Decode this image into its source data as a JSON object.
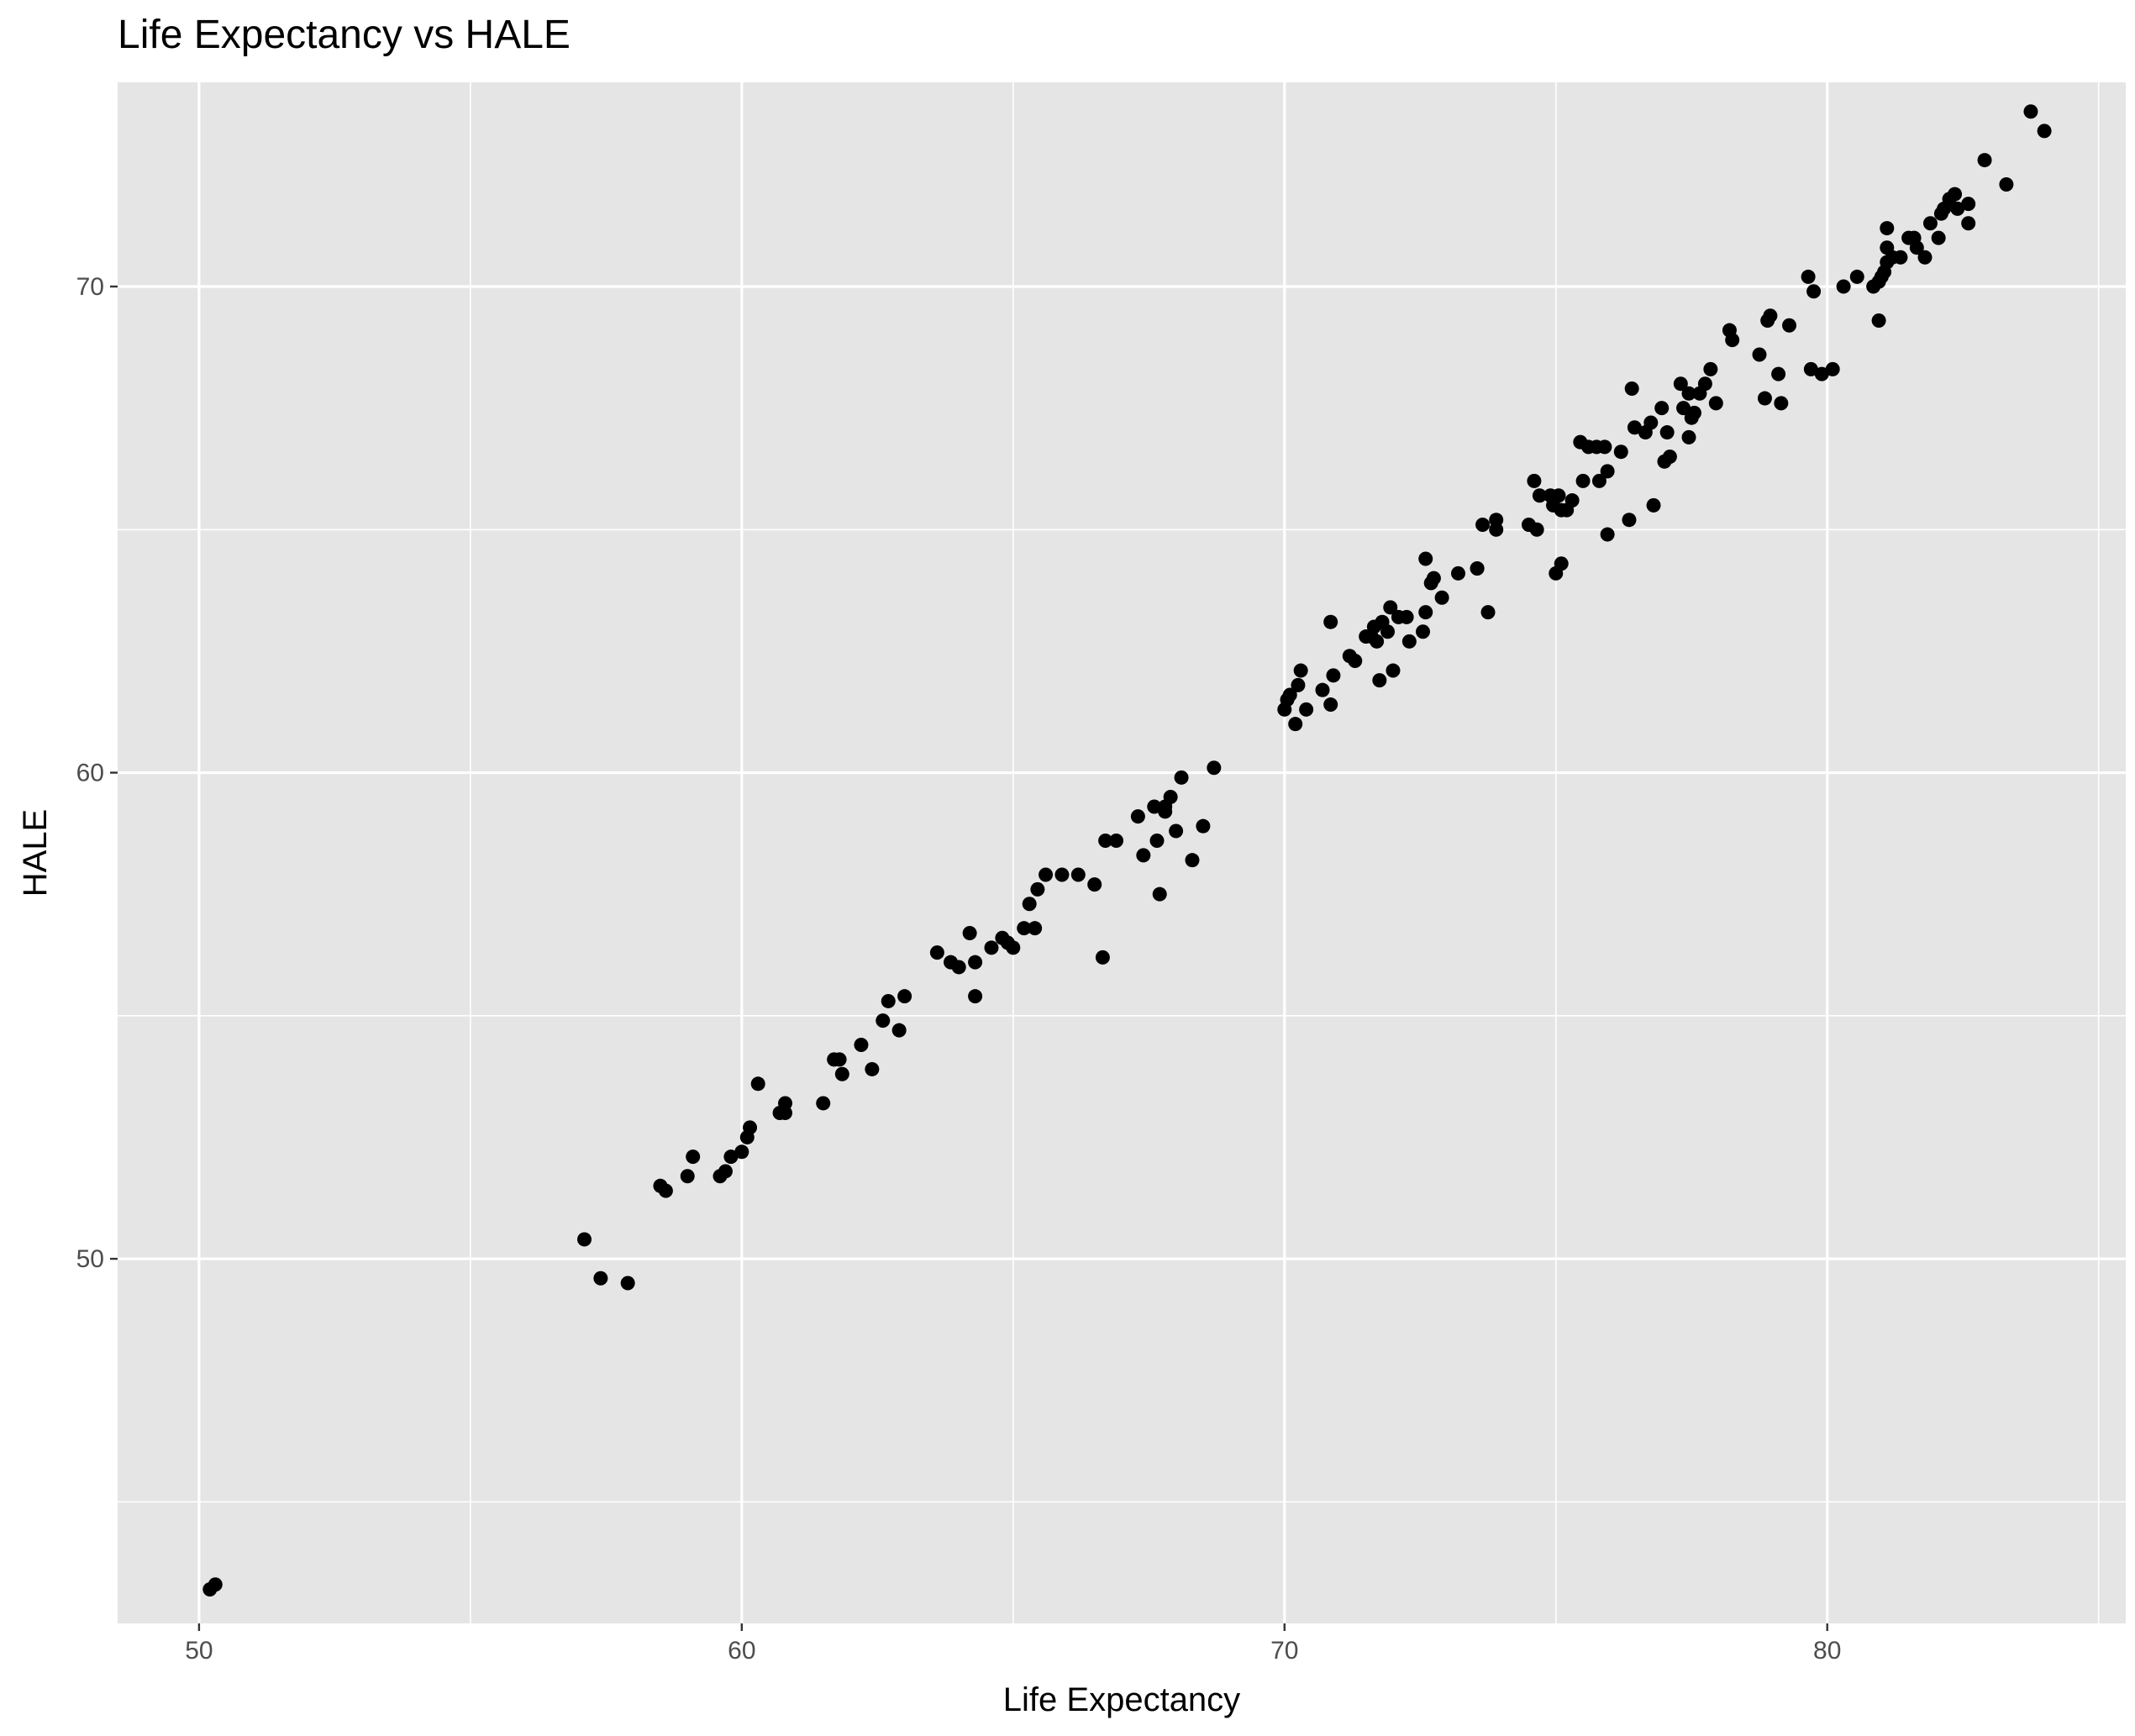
{
  "chart_data": {
    "type": "scatter",
    "title": "Life Expectancy vs HALE",
    "xlabel": "Life Expectancy",
    "ylabel": "HALE",
    "xlim": [
      48.5,
      85.5
    ],
    "ylim": [
      42.5,
      74.2
    ],
    "x_ticks": [
      50,
      60,
      70,
      80
    ],
    "x_tick_labels": [
      "50",
      "60",
      "70",
      "80"
    ],
    "y_ticks": [
      50,
      60,
      70
    ],
    "y_tick_labels": [
      "50",
      "60",
      "70"
    ],
    "x_minor_ticks": [
      55,
      65,
      75,
      85
    ],
    "y_minor_ticks": [
      45,
      55,
      65
    ],
    "grid": true,
    "colors": {
      "panel": "#e5e5e5",
      "grid": "#ffffff",
      "point": "#000000",
      "tick": "#333333"
    },
    "points": [
      [
        50.2,
        43.2
      ],
      [
        50.3,
        43.3
      ],
      [
        57.1,
        50.4
      ],
      [
        57.4,
        49.6
      ],
      [
        57.9,
        49.5
      ],
      [
        58.5,
        51.5
      ],
      [
        58.6,
        51.4
      ],
      [
        59.0,
        51.7
      ],
      [
        59.1,
        52.1
      ],
      [
        59.6,
        51.7
      ],
      [
        59.7,
        51.8
      ],
      [
        59.8,
        52.1
      ],
      [
        60.0,
        52.2
      ],
      [
        60.1,
        52.5
      ],
      [
        60.15,
        52.7
      ],
      [
        60.3,
        53.6
      ],
      [
        60.7,
        53.0
      ],
      [
        60.8,
        53.2
      ],
      [
        60.8,
        53.0
      ],
      [
        61.5,
        53.2
      ],
      [
        61.7,
        54.1
      ],
      [
        61.8,
        54.1
      ],
      [
        61.85,
        53.8
      ],
      [
        62.2,
        54.4
      ],
      [
        62.4,
        53.9
      ],
      [
        62.6,
        54.9
      ],
      [
        62.7,
        55.3
      ],
      [
        62.9,
        54.7
      ],
      [
        63.0,
        55.4
      ],
      [
        63.6,
        56.3
      ],
      [
        63.85,
        56.1
      ],
      [
        64.0,
        56.0
      ],
      [
        64.2,
        56.7
      ],
      [
        64.3,
        55.4
      ],
      [
        64.3,
        56.1
      ],
      [
        64.6,
        56.4
      ],
      [
        64.8,
        56.6
      ],
      [
        64.9,
        56.5
      ],
      [
        65.0,
        56.4
      ],
      [
        65.2,
        56.8
      ],
      [
        65.3,
        57.3
      ],
      [
        65.4,
        56.8
      ],
      [
        65.45,
        57.6
      ],
      [
        65.6,
        57.9
      ],
      [
        65.9,
        57.9
      ],
      [
        66.2,
        57.9
      ],
      [
        66.5,
        57.7
      ],
      [
        66.65,
        56.2
      ],
      [
        66.7,
        58.6
      ],
      [
        66.9,
        58.6
      ],
      [
        67.3,
        59.1
      ],
      [
        67.4,
        58.3
      ],
      [
        67.6,
        59.3
      ],
      [
        67.65,
        58.6
      ],
      [
        67.7,
        57.5
      ],
      [
        67.8,
        59.3
      ],
      [
        67.8,
        59.2
      ],
      [
        67.9,
        59.5
      ],
      [
        68.0,
        58.8
      ],
      [
        68.1,
        59.9
      ],
      [
        68.3,
        58.2
      ],
      [
        68.5,
        58.9
      ],
      [
        68.7,
        60.1
      ],
      [
        70.0,
        61.3
      ],
      [
        70.1,
        61.6
      ],
      [
        70.05,
        61.5
      ],
      [
        70.2,
        61.0
      ],
      [
        70.25,
        61.8
      ],
      [
        70.3,
        62.1
      ],
      [
        70.4,
        61.3
      ],
      [
        70.7,
        61.7
      ],
      [
        70.85,
        61.4
      ],
      [
        70.9,
        62.0
      ],
      [
        70.85,
        63.1
      ],
      [
        71.2,
        62.4
      ],
      [
        71.3,
        62.3
      ],
      [
        71.5,
        62.8
      ],
      [
        71.6,
        62.8
      ],
      [
        71.65,
        63.0
      ],
      [
        71.7,
        62.7
      ],
      [
        71.75,
        61.9
      ],
      [
        71.8,
        63.1
      ],
      [
        71.9,
        62.9
      ],
      [
        71.95,
        63.4
      ],
      [
        72.0,
        62.1
      ],
      [
        72.1,
        63.2
      ],
      [
        72.25,
        63.2
      ],
      [
        72.3,
        62.7
      ],
      [
        72.55,
        62.9
      ],
      [
        72.6,
        63.3
      ],
      [
        72.6,
        64.4
      ],
      [
        72.7,
        63.9
      ],
      [
        72.75,
        64.0
      ],
      [
        72.9,
        63.6
      ],
      [
        73.2,
        64.1
      ],
      [
        73.55,
        64.2
      ],
      [
        73.55,
        64.2
      ],
      [
        73.65,
        65.1
      ],
      [
        73.75,
        63.3
      ],
      [
        73.9,
        65.2
      ],
      [
        73.9,
        65.0
      ],
      [
        74.5,
        65.1
      ],
      [
        74.6,
        66.0
      ],
      [
        74.65,
        65.0
      ],
      [
        74.7,
        65.7
      ],
      [
        74.9,
        65.7
      ],
      [
        74.95,
        65.5
      ],
      [
        75.0,
        64.1
      ],
      [
        75.05,
        65.7
      ],
      [
        75.1,
        64.3
      ],
      [
        75.1,
        65.4
      ],
      [
        75.2,
        65.4
      ],
      [
        75.3,
        65.6
      ],
      [
        75.45,
        66.8
      ],
      [
        75.5,
        66.0
      ],
      [
        75.6,
        66.7
      ],
      [
        75.75,
        66.7
      ],
      [
        75.8,
        66.0
      ],
      [
        75.9,
        66.7
      ],
      [
        75.95,
        66.2
      ],
      [
        75.95,
        64.9
      ],
      [
        76.2,
        66.6
      ],
      [
        76.35,
        65.2
      ],
      [
        76.4,
        67.9
      ],
      [
        76.45,
        67.1
      ],
      [
        76.65,
        67.0
      ],
      [
        76.75,
        67.2
      ],
      [
        76.8,
        65.5
      ],
      [
        76.95,
        67.5
      ],
      [
        77.0,
        66.4
      ],
      [
        77.05,
        67.0
      ],
      [
        77.1,
        66.5
      ],
      [
        77.3,
        68.0
      ],
      [
        77.35,
        67.5
      ],
      [
        77.45,
        67.8
      ],
      [
        77.45,
        66.9
      ],
      [
        77.5,
        67.3
      ],
      [
        77.55,
        67.4
      ],
      [
        77.65,
        67.8
      ],
      [
        77.75,
        68.0
      ],
      [
        77.85,
        68.3
      ],
      [
        77.95,
        67.6
      ],
      [
        78.2,
        69.1
      ],
      [
        78.25,
        68.9
      ],
      [
        78.75,
        68.6
      ],
      [
        78.85,
        67.7
      ],
      [
        78.9,
        69.3
      ],
      [
        78.95,
        69.4
      ],
      [
        79.1,
        68.2
      ],
      [
        79.15,
        67.6
      ],
      [
        79.3,
        69.2
      ],
      [
        79.65,
        70.2
      ],
      [
        79.75,
        69.9
      ],
      [
        79.7,
        68.3
      ],
      [
        79.9,
        68.2
      ],
      [
        80.1,
        68.3
      ],
      [
        80.3,
        70.0
      ],
      [
        80.55,
        70.2
      ],
      [
        80.85,
        70.0
      ],
      [
        80.95,
        70.1
      ],
      [
        80.95,
        69.3
      ],
      [
        81.0,
        70.2
      ],
      [
        81.05,
        70.3
      ],
      [
        81.1,
        70.5
      ],
      [
        81.1,
        70.8
      ],
      [
        81.1,
        71.2
      ],
      [
        81.2,
        70.6
      ],
      [
        81.35,
        70.6
      ],
      [
        81.5,
        71.0
      ],
      [
        81.6,
        71.0
      ],
      [
        81.65,
        70.8
      ],
      [
        81.8,
        70.6
      ],
      [
        81.9,
        71.3
      ],
      [
        82.05,
        71.0
      ],
      [
        82.1,
        71.5
      ],
      [
        82.15,
        71.6
      ],
      [
        82.25,
        71.8
      ],
      [
        82.35,
        71.9
      ],
      [
        82.4,
        71.6
      ],
      [
        82.6,
        71.3
      ],
      [
        82.6,
        71.7
      ],
      [
        82.9,
        72.6
      ],
      [
        83.3,
        72.1
      ],
      [
        83.75,
        73.6
      ],
      [
        84.0,
        73.2
      ]
    ]
  }
}
